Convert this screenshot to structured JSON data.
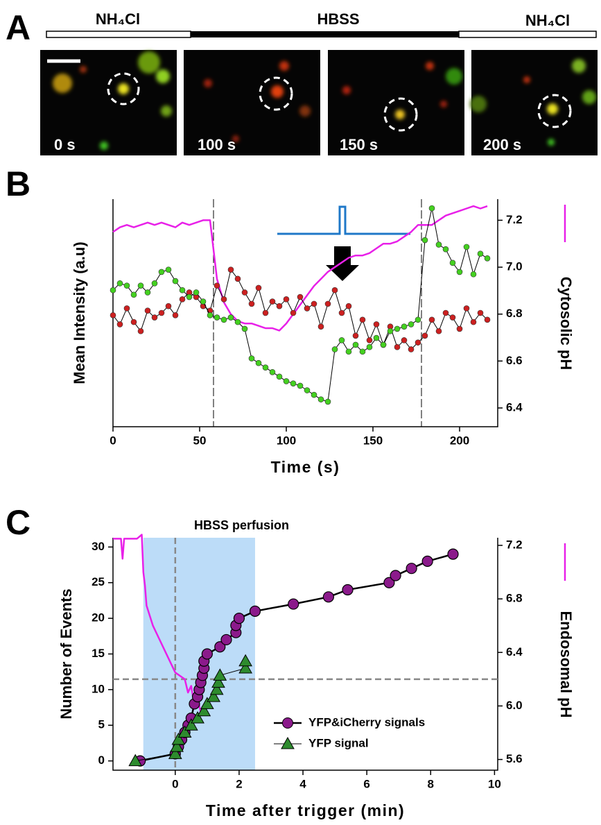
{
  "panel_a": {
    "label": "A",
    "solutions": [
      "NH₄Cl",
      "HBSS",
      "NH₄Cl"
    ],
    "frames": [
      "0 s",
      "100 s",
      "150 s",
      "200 s"
    ]
  },
  "chart_data": [
    {
      "type": "line",
      "panel_label": "B",
      "xlabel": "Time (s)",
      "ylabel": "Mean Intensity (a.u)",
      "y2label": "Cytosolic pH",
      "xlim": [
        0,
        222
      ],
      "xticks": [
        0,
        50,
        100,
        150,
        200
      ],
      "ylim": [
        0,
        10
      ],
      "y2lim": [
        6.32,
        7.29
      ],
      "y2ticks": [
        6.4,
        6.6,
        6.8,
        {
          "value": 7,
          "label": "7.0"
        },
        7.2
      ],
      "vlines": [
        58,
        178
      ],
      "x": [
        0,
        4,
        8,
        12,
        16,
        20,
        24,
        28,
        32,
        36,
        40,
        44,
        48,
        52,
        56,
        60,
        64,
        68,
        72,
        76,
        80,
        84,
        88,
        92,
        96,
        100,
        104,
        108,
        112,
        116,
        120,
        124,
        128,
        132,
        136,
        140,
        144,
        148,
        152,
        156,
        160,
        164,
        168,
        172,
        176,
        180,
        184,
        188,
        192,
        196,
        200,
        204,
        208,
        212,
        216
      ],
      "series": [
        {
          "color": "#e820e8",
          "marker": "none",
          "axis": "y2",
          "values": [
            7.15,
            7.17,
            7.18,
            7.17,
            7.18,
            7.19,
            7.18,
            7.19,
            7.18,
            7.17,
            7.19,
            7.18,
            7.19,
            7.2,
            7.2,
            6.95,
            6.85,
            6.8,
            6.77,
            6.76,
            6.76,
            6.75,
            6.74,
            6.74,
            6.73,
            6.76,
            6.8,
            6.84,
            6.88,
            6.92,
            6.95,
            6.98,
            7.0,
            7.02,
            7.04,
            7.05,
            7.05,
            7.06,
            7.08,
            7.1,
            7.1,
            7.11,
            7.13,
            7.15,
            7.18,
            7.18,
            7.18,
            7.2,
            7.22,
            7.23,
            7.24,
            7.25,
            7.26,
            7.25,
            7.26
          ]
        },
        {
          "color": "#cc2020",
          "line_color": "#000000",
          "marker": "circle",
          "values": [
            4.9,
            4.5,
            5.2,
            4.6,
            4.2,
            5.1,
            4.8,
            5.0,
            5.3,
            4.9,
            5.6,
            5.9,
            5.7,
            5.3,
            5.1,
            6.2,
            5.6,
            6.9,
            6.5,
            5.9,
            5.4,
            6.1,
            5.0,
            5.5,
            5.3,
            5.6,
            5.0,
            5.7,
            5.2,
            5.4,
            4.4,
            5.4,
            6.0,
            5.0,
            5.3,
            4.0,
            4.7,
            3.8,
            4.5,
            3.6,
            4.4,
            3.5,
            3.8,
            3.4,
            3.7,
            4.0,
            4.7,
            4.2,
            5.0,
            4.8,
            4.3,
            5.2,
            4.6,
            5.0,
            4.7
          ]
        },
        {
          "color": "#44d020",
          "line_color": "#000000",
          "marker": "circle",
          "values": [
            6.0,
            6.3,
            6.2,
            5.8,
            6.2,
            5.9,
            6.3,
            6.8,
            6.9,
            6.4,
            6.0,
            5.7,
            5.9,
            5.5,
            4.9,
            4.8,
            4.7,
            4.8,
            4.6,
            4.3,
            3.0,
            2.8,
            2.6,
            2.4,
            2.2,
            2.0,
            1.9,
            1.8,
            1.6,
            1.4,
            1.2,
            1.1,
            3.4,
            3.8,
            3.3,
            3.6,
            3.3,
            3.5,
            3.9,
            3.6,
            4.2,
            4.3,
            4.4,
            4.5,
            4.7,
            8.2,
            9.6,
            8.0,
            7.8,
            7.2,
            6.8,
            7.9,
            6.7,
            7.6,
            7.4
          ]
        }
      ]
    },
    {
      "type": "line",
      "panel_label": "C",
      "xlabel": "Time after trigger (min)",
      "ylabel": "Number of Events",
      "y2label": "Endosomal pH",
      "xlim": [
        -1.95,
        10.1
      ],
      "xticks": [
        0,
        2,
        4,
        6,
        8,
        10
      ],
      "ylim": [
        -1.3,
        31.3
      ],
      "yticks": [
        0,
        5,
        10,
        15,
        20,
        25,
        30
      ],
      "y2lim": [
        5.52,
        7.257
      ],
      "y2ticks": [
        5.6,
        {
          "value": 6,
          "label": "6.0"
        },
        6.4,
        6.8,
        7.2
      ],
      "shade": [
        -1,
        2.5
      ],
      "shade_label": "HBSS perfusion",
      "vlines": [
        0
      ],
      "hlines_y2": [
        6.2
      ],
      "legend": "lower right",
      "series": [
        {
          "color": "#e820e8",
          "marker": "none",
          "axis": "y2",
          "x": [
            -1.95,
            -1.7,
            -1.65,
            -1.6,
            -1.2,
            -1.05,
            -1.0,
            -0.95,
            -0.9,
            -0.7,
            -0.5,
            -0.3,
            -0.1,
            0,
            0.3,
            0.4,
            0.5,
            0.6,
            0.7,
            0.8
          ],
          "values": [
            7.25,
            7.25,
            7.1,
            7.25,
            7.25,
            7.28,
            7.0,
            6.9,
            6.75,
            6.6,
            6.5,
            6.4,
            6.3,
            6.25,
            6.2,
            6.1,
            6.15,
            6.0,
            6.05,
            5.95
          ]
        },
        {
          "name": "YFP&iCherry signals",
          "color": "#8b1a8b",
          "line_color": "#000000",
          "marker": "circle",
          "x": [
            -1.1,
            0,
            0.1,
            0.2,
            0.3,
            0.4,
            0.5,
            0.6,
            0.7,
            0.75,
            0.8,
            0.85,
            0.9,
            0.9,
            1.0,
            1.4,
            1.6,
            1.9,
            1.9,
            2.0,
            2.5,
            3.7,
            4.8,
            5.4,
            6.7,
            6.9,
            7.4,
            7.9,
            8.7
          ],
          "values": [
            0,
            1,
            2,
            3,
            4,
            5,
            6,
            8,
            9,
            10,
            11,
            12,
            13,
            14,
            15,
            16,
            17,
            18,
            19,
            20,
            21,
            22,
            23,
            24,
            25,
            26,
            27,
            28,
            29
          ]
        },
        {
          "name": "YFP signal",
          "color": "#2e8b2e",
          "line_color": "#000000",
          "marker": "triangle",
          "x": [
            -1.25,
            0,
            0.05,
            0.1,
            0.3,
            0.5,
            0.7,
            0.9,
            1.0,
            1.2,
            1.3,
            1.35,
            1.4,
            2.2,
            2.2
          ],
          "values": [
            0,
            1,
            2,
            3,
            4,
            5,
            6,
            7,
            8,
            9,
            10,
            11,
            12,
            13,
            14
          ]
        }
      ]
    }
  ]
}
